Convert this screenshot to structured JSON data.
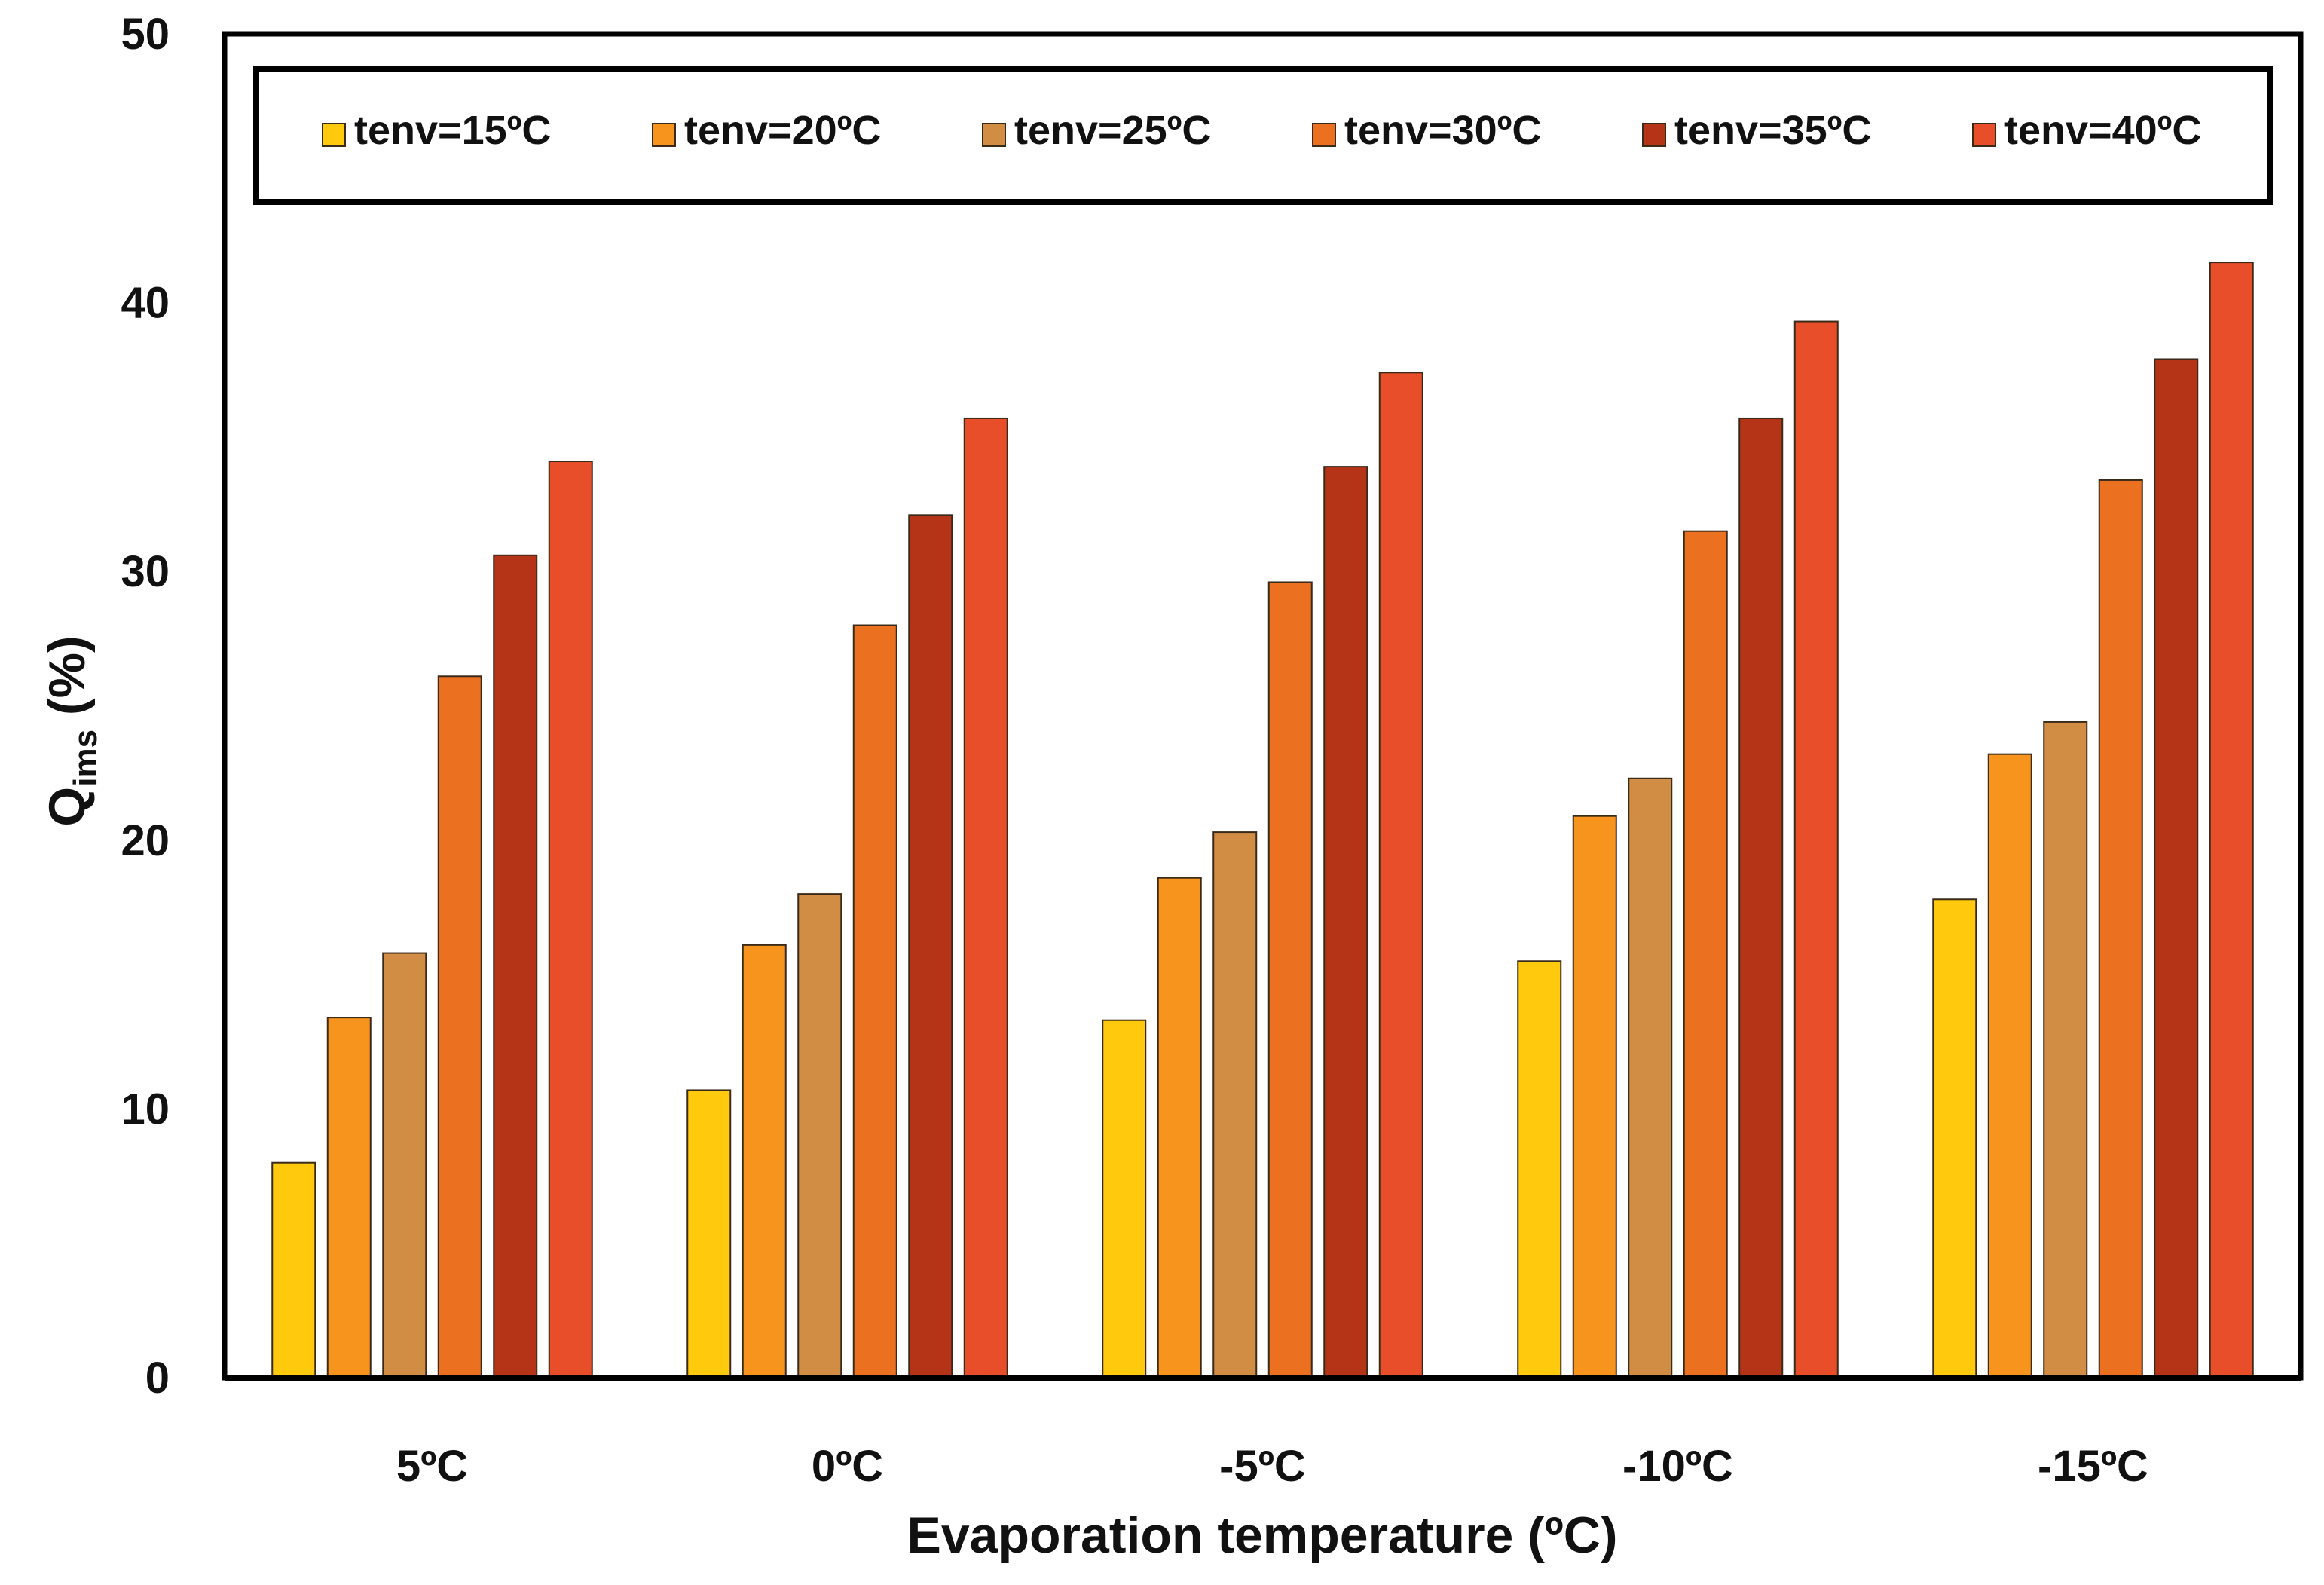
{
  "chart_data": {
    "type": "bar",
    "title": "",
    "xlabel": "Evaporation temperature (ºC)",
    "ylabel": {
      "main": "Q",
      "subscript": "ims",
      "unit": " (%)"
    },
    "ylim": [
      0,
      50
    ],
    "yticks": [
      "0",
      "10",
      "20",
      "30",
      "40",
      "50"
    ],
    "grid": false,
    "legend_position": "top",
    "categories": [
      "5ºC",
      "0ºC",
      "-5ºC",
      "-10ºC",
      "-15ºC"
    ],
    "series": [
      {
        "name": "tenv=15ºC",
        "color": "#FFC90E",
        "values": [
          8.0,
          10.7,
          13.3,
          15.5,
          17.8
        ]
      },
      {
        "name": "tenv=20ºC",
        "color": "#F7941D",
        "values": [
          13.4,
          16.1,
          18.6,
          20.9,
          23.2
        ]
      },
      {
        "name": "tenv=25ºC",
        "color": "#D28D45",
        "values": [
          15.8,
          18.0,
          20.3,
          22.3,
          24.4
        ]
      },
      {
        "name": "tenv=30ºC",
        "color": "#EB7020",
        "values": [
          26.1,
          28.0,
          29.6,
          31.5,
          33.4
        ]
      },
      {
        "name": "tenv=35ºC",
        "color": "#B53418",
        "values": [
          30.6,
          32.1,
          33.9,
          35.7,
          37.9
        ]
      },
      {
        "name": "tenv=40ºC",
        "color": "#E84E2A",
        "values": [
          34.1,
          35.7,
          37.4,
          39.3,
          41.5
        ]
      }
    ]
  }
}
